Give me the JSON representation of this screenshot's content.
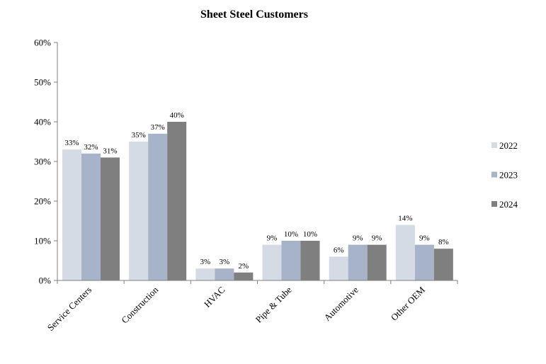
{
  "chart_data": {
    "type": "bar",
    "title": "Sheet Steel Customers",
    "xlabel": "",
    "ylabel": "",
    "categories": [
      "Service Centers",
      "Construction",
      "HVAC",
      "Pipe & Tube",
      "Automotive",
      "Other OEM"
    ],
    "series": [
      {
        "name": "2022",
        "color": "#d5dbe5",
        "values": [
          33,
          35,
          3,
          9,
          6,
          14
        ],
        "labels": [
          "33%",
          "35%",
          "3%",
          "9%",
          "6%",
          "14%"
        ]
      },
      {
        "name": "2023",
        "color": "#a7b3c9",
        "values": [
          32,
          37,
          3,
          10,
          9,
          9
        ],
        "labels": [
          "32%",
          "37%",
          "3%",
          "10%",
          "9%",
          "9%"
        ]
      },
      {
        "name": "2024",
        "color": "#7f7f7f",
        "values": [
          31,
          40,
          2,
          10,
          9,
          8
        ],
        "labels": [
          "31%",
          "40%",
          "2%",
          "10%",
          "9%",
          "8%"
        ]
      }
    ],
    "ylim": [
      0,
      60
    ],
    "yticks": [
      0,
      10,
      20,
      30,
      40,
      50,
      60
    ],
    "ytick_labels": [
      "0%",
      "10%",
      "20%",
      "30%",
      "40%",
      "50%",
      "60%"
    ],
    "grid": false,
    "legend_position": "right",
    "axis_color": "#7f7f7f"
  }
}
